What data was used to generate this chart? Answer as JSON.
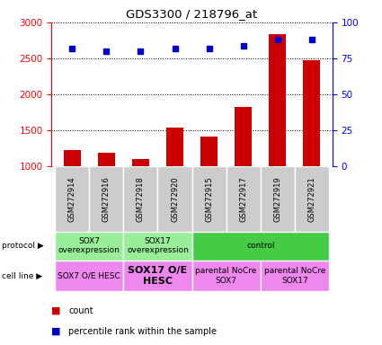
{
  "title": "GDS3300 / 218796_at",
  "samples": [
    "GSM272914",
    "GSM272916",
    "GSM272918",
    "GSM272920",
    "GSM272915",
    "GSM272917",
    "GSM272919",
    "GSM272921"
  ],
  "counts": [
    1230,
    1185,
    1100,
    1540,
    1415,
    1820,
    2840,
    2480
  ],
  "percentiles": [
    82,
    80,
    80,
    82,
    82,
    84,
    88,
    88
  ],
  "ylim_left": [
    1000,
    3000
  ],
  "ylim_right": [
    0,
    100
  ],
  "yticks_left": [
    1000,
    1500,
    2000,
    2500,
    3000
  ],
  "yticks_right": [
    0,
    25,
    50,
    75,
    100
  ],
  "bar_color": "#cc0000",
  "dot_color": "#0000cc",
  "protocol_groups": [
    {
      "label": "SOX7\noverexpression",
      "start": 0,
      "end": 2,
      "color": "#99ee99"
    },
    {
      "label": "SOX17\noverexpression",
      "start": 2,
      "end": 4,
      "color": "#99ee99"
    },
    {
      "label": "control",
      "start": 4,
      "end": 8,
      "color": "#44cc44"
    }
  ],
  "cell_line_groups": [
    {
      "label": "SOX7 O/E HESC",
      "start": 0,
      "end": 2,
      "color": "#ee88ee",
      "fontsize": 6.5,
      "bold": false
    },
    {
      "label": "SOX17 O/E\nHESC",
      "start": 2,
      "end": 4,
      "color": "#ee88ee",
      "fontsize": 8,
      "bold": true
    },
    {
      "label": "parental NoCre\nSOX7",
      "start": 4,
      "end": 6,
      "color": "#ee88ee",
      "fontsize": 6.5,
      "bold": false
    },
    {
      "label": "parental NoCre\nSOX17",
      "start": 6,
      "end": 8,
      "color": "#ee88ee",
      "fontsize": 6.5,
      "bold": false
    }
  ],
  "legend_items": [
    {
      "color": "#cc0000",
      "label": "count"
    },
    {
      "color": "#0000cc",
      "label": "percentile rank within the sample"
    }
  ],
  "sample_box_color": "#cccccc"
}
